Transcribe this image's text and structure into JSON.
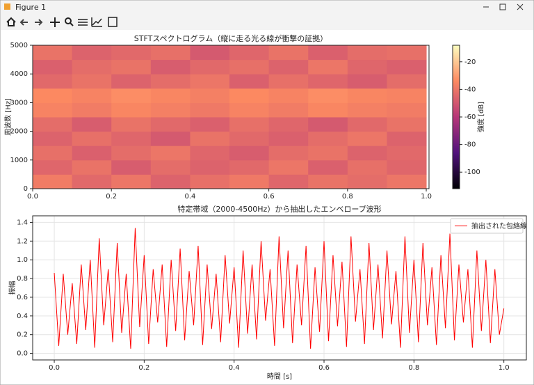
{
  "window_title": "Figure 1",
  "chart_data": [
    {
      "type": "heatmap",
      "title": "STFTスペクトログラム（縦に走る光る線が衝撃の証拠）",
      "y_label": "周波数 [Hz]",
      "colorbar_label": "強度 [dB]",
      "colormap": "magma",
      "x": [
        0.05,
        0.15,
        0.25,
        0.35,
        0.45,
        0.55,
        0.65,
        0.75,
        0.85,
        0.95
      ],
      "y": [
        250,
        750,
        1250,
        1750,
        2250,
        2750,
        3250,
        3750,
        4250,
        4750
      ],
      "z": [
        [
          -38,
          -44,
          -40,
          -46,
          -42,
          -39,
          -45,
          -41,
          -43,
          -40
        ],
        [
          -45,
          -41,
          -48,
          -43,
          -46,
          -44,
          -40,
          -47,
          -42,
          -45
        ],
        [
          -42,
          -47,
          -43,
          -40,
          -45,
          -48,
          -43,
          -41,
          -46,
          -44
        ],
        [
          -46,
          -42,
          -45,
          -49,
          -41,
          -44,
          -47,
          -43,
          -40,
          -46
        ],
        [
          -43,
          -48,
          -41,
          -44,
          -47,
          -42,
          -45,
          -49,
          -44,
          -41
        ],
        [
          -36,
          -38,
          -35,
          -37,
          -39,
          -36,
          -38,
          -35,
          -37,
          -38
        ],
        [
          -34,
          -36,
          -33,
          -35,
          -37,
          -34,
          -36,
          -33,
          -35,
          -36
        ],
        [
          -44,
          -41,
          -46,
          -43,
          -40,
          -47,
          -42,
          -45,
          -48,
          -43
        ],
        [
          -47,
          -43,
          -41,
          -48,
          -44,
          -42,
          -46,
          -40,
          -45,
          -47
        ],
        [
          -41,
          -46,
          -44,
          -42,
          -49,
          -45,
          -41,
          -47,
          -43,
          -42
        ]
      ],
      "xlim": [
        0,
        1.007
      ],
      "ylim": [
        0,
        5000
      ],
      "xticks": [
        {
          "value": 0,
          "label": "0.0"
        },
        0.2,
        0.4,
        0.6,
        0.8,
        {
          "value": 1,
          "label": "1.0"
        }
      ],
      "yticks": [
        0,
        1000,
        2000,
        3000,
        4000,
        5000
      ],
      "clim": [
        -112,
        -8
      ],
      "colorbar_ticks": [
        -20,
        -40,
        -60,
        -80,
        -100
      ]
    },
    {
      "type": "line",
      "title": "特定帯域（2000-4500Hz）から抽出したエンベロープ波形",
      "x_label": "時間 [s]",
      "y_label": "振幅",
      "grid": true,
      "legend": "upper right",
      "x": [
        0,
        0.01,
        0.02,
        0.03,
        0.04,
        0.05,
        0.06,
        0.07,
        0.08,
        0.09,
        0.1,
        0.11,
        0.12,
        0.13,
        0.14,
        0.15,
        0.16,
        0.17,
        0.18,
        0.19,
        0.2,
        0.21,
        0.22,
        0.23,
        0.24,
        0.25,
        0.26,
        0.27,
        0.28,
        0.29,
        0.3,
        0.31,
        0.32,
        0.33,
        0.34,
        0.35,
        0.36,
        0.37,
        0.38,
        0.39,
        0.4,
        0.41,
        0.42,
        0.43,
        0.44,
        0.45,
        0.46,
        0.47,
        0.48,
        0.49,
        0.5,
        0.51,
        0.52,
        0.53,
        0.54,
        0.55,
        0.56,
        0.57,
        0.58,
        0.59,
        0.6,
        0.61,
        0.62,
        0.63,
        0.64,
        0.65,
        0.66,
        0.67,
        0.68,
        0.69,
        0.7,
        0.71,
        0.72,
        0.73,
        0.74,
        0.75,
        0.76,
        0.77,
        0.78,
        0.79,
        0.8,
        0.81,
        0.82,
        0.83,
        0.84,
        0.85,
        0.86,
        0.87,
        0.88,
        0.89,
        0.9,
        0.91,
        0.92,
        0.93,
        0.94,
        0.95,
        0.96,
        0.97,
        0.98,
        0.99,
        1
      ],
      "series": [
        {
          "name": "抽出された包絡線",
          "color": "#ff0000",
          "values": [
            0.86,
            0.08,
            0.85,
            0.2,
            0.75,
            0.1,
            0.95,
            0.25,
            1.0,
            0.06,
            1.23,
            0.3,
            0.9,
            0.12,
            1.18,
            0.22,
            0.85,
            0.05,
            1.34,
            0.28,
            1.05,
            0.1,
            0.9,
            0.33,
            0.95,
            0.07,
            1.0,
            0.24,
            1.12,
            0.14,
            0.88,
            0.3,
            1.15,
            0.09,
            0.95,
            0.26,
            0.85,
            0.12,
            1.05,
            0.32,
            0.92,
            0.06,
            1.1,
            0.21,
            0.95,
            0.15,
            1.2,
            0.35,
            0.9,
            0.08,
            1.25,
            0.27,
            1.1,
            0.11,
            0.95,
            0.3,
            1.15,
            0.05,
            0.92,
            0.23,
            1.2,
            0.13,
            1.05,
            0.29,
            0.98,
            0.07,
            1.25,
            0.34,
            0.9,
            0.1,
            1.18,
            0.25,
            0.95,
            0.16,
            1.1,
            0.31,
            0.88,
            0.06,
            1.25,
            0.22,
            1.0,
            0.12,
            1.18,
            0.3,
            0.92,
            0.09,
            1.05,
            0.27,
            1.28,
            0.14,
            0.95,
            0.33,
            0.9,
            0.06,
            1.1,
            0.24,
            1.0,
            0.11,
            0.9,
            0.2,
            0.48
          ]
        }
      ],
      "xlim": [
        -0.048,
        1.05
      ],
      "ylim": [
        -0.07,
        1.47
      ],
      "xticks": [
        {
          "value": 0,
          "label": "0.0"
        },
        0.2,
        0.4,
        0.6,
        0.8,
        {
          "value": 1,
          "label": "1.0"
        }
      ],
      "yticks": [
        {
          "value": 0,
          "label": "0.0"
        },
        0.2,
        0.4,
        0.6,
        0.8,
        {
          "value": 1,
          "label": "1.0"
        },
        1.2,
        1.4
      ]
    }
  ]
}
